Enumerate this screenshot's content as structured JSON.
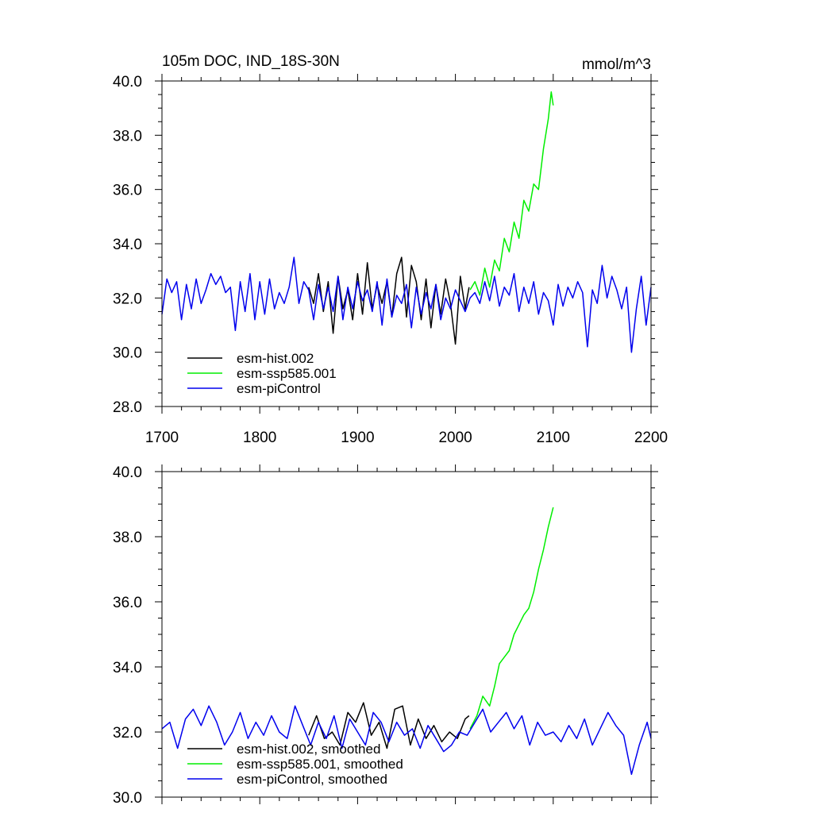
{
  "chart_data": [
    {
      "type": "line",
      "title": "105m DOC, IND_18S-30N",
      "units": "mmol/m^3",
      "xlabel": "",
      "ylabel": "",
      "xlim": [
        1700,
        2200
      ],
      "ylim": [
        28.0,
        40.0
      ],
      "xticks": [
        1700,
        1800,
        1900,
        2000,
        2100,
        2200
      ],
      "xtick_labels": [
        "1700",
        "1800",
        "1900",
        "2000",
        "2100",
        "2200"
      ],
      "yticks": [
        28.0,
        30.0,
        32.0,
        34.0,
        36.0,
        38.0,
        40.0
      ],
      "ytick_labels": [
        "28.0",
        "30.0",
        "32.0",
        "34.0",
        "36.0",
        "38.0",
        "40.0"
      ],
      "legend": "bottom-left",
      "series": [
        {
          "name": "esm-hist.002",
          "color": "#000000",
          "x": [
            1850,
            1855,
            1860,
            1865,
            1870,
            1875,
            1880,
            1885,
            1890,
            1895,
            1900,
            1905,
            1910,
            1915,
            1920,
            1925,
            1930,
            1935,
            1940,
            1945,
            1950,
            1955,
            1960,
            1965,
            1970,
            1975,
            1980,
            1985,
            1990,
            1995,
            2000,
            2005,
            2010,
            2014
          ],
          "y": [
            32.4,
            31.8,
            32.9,
            31.5,
            32.6,
            30.7,
            32.8,
            31.6,
            32.3,
            31.2,
            32.9,
            31.4,
            33.3,
            31.6,
            32.5,
            31.8,
            32.6,
            31.3,
            32.9,
            33.5,
            31.3,
            33.2,
            32.6,
            31.2,
            32.7,
            30.9,
            32.5,
            31.4,
            32.7,
            31.8,
            30.3,
            32.8,
            31.6,
            32.4
          ]
        },
        {
          "name": "esm-ssp585.001",
          "color": "#00ee00",
          "x": [
            2015,
            2020,
            2025,
            2030,
            2035,
            2040,
            2045,
            2050,
            2055,
            2060,
            2065,
            2070,
            2075,
            2080,
            2085,
            2090,
            2095,
            2098,
            2100
          ],
          "y": [
            32.3,
            32.6,
            32.1,
            33.1,
            32.4,
            33.4,
            33.0,
            34.2,
            33.7,
            34.8,
            34.2,
            35.6,
            35.2,
            36.2,
            36.0,
            37.5,
            38.6,
            39.6,
            39.1
          ]
        },
        {
          "name": "esm-piControl",
          "color": "#0000ee",
          "x": [
            1700,
            1705,
            1710,
            1715,
            1720,
            1725,
            1730,
            1735,
            1740,
            1745,
            1750,
            1755,
            1760,
            1765,
            1770,
            1775,
            1780,
            1785,
            1790,
            1795,
            1800,
            1805,
            1810,
            1815,
            1820,
            1825,
            1830,
            1835,
            1840,
            1845,
            1850,
            1855,
            1860,
            1865,
            1870,
            1875,
            1880,
            1885,
            1890,
            1895,
            1900,
            1905,
            1910,
            1915,
            1920,
            1925,
            1930,
            1935,
            1940,
            1945,
            1950,
            1955,
            1960,
            1965,
            1970,
            1975,
            1980,
            1985,
            1990,
            1995,
            2000,
            2005,
            2010,
            2015,
            2020,
            2025,
            2030,
            2035,
            2040,
            2045,
            2050,
            2055,
            2060,
            2065,
            2070,
            2075,
            2080,
            2085,
            2090,
            2095,
            2100,
            2105,
            2110,
            2115,
            2120,
            2125,
            2130,
            2135,
            2140,
            2145,
            2150,
            2155,
            2160,
            2165,
            2170,
            2175,
            2180,
            2185,
            2190,
            2195,
            2200
          ],
          "y": [
            31.4,
            32.7,
            32.2,
            32.6,
            31.2,
            32.5,
            31.6,
            32.7,
            31.8,
            32.3,
            32.9,
            32.5,
            32.8,
            32.2,
            32.4,
            30.8,
            32.6,
            31.5,
            32.9,
            31.2,
            32.6,
            31.4,
            32.7,
            31.6,
            32.2,
            31.8,
            32.4,
            33.5,
            31.8,
            32.6,
            32.3,
            31.2,
            32.5,
            31.6,
            32.4,
            31.5,
            32.8,
            31.2,
            32.4,
            31.6,
            32.6,
            31.9,
            32.3,
            31.5,
            32.6,
            31.0,
            32.7,
            31.3,
            32.1,
            31.8,
            32.5,
            30.9,
            32.4,
            31.4,
            32.2,
            31.6,
            32.5,
            31.2,
            32.0,
            31.6,
            32.3,
            31.9,
            31.5,
            32.0,
            32.2,
            31.8,
            32.6,
            31.9,
            32.8,
            31.7,
            32.4,
            32.1,
            32.9,
            31.5,
            32.4,
            31.8,
            32.6,
            31.4,
            32.2,
            31.9,
            31.0,
            32.5,
            31.7,
            32.4,
            32.0,
            32.6,
            32.2,
            30.2,
            32.3,
            31.8,
            33.2,
            32.0,
            32.8,
            32.3,
            31.6,
            32.4,
            30.0,
            31.6,
            32.8,
            31.0,
            32.4
          ]
        }
      ]
    },
    {
      "type": "line",
      "title": "",
      "xlim": [
        1700,
        2200
      ],
      "ylim": [
        30.0,
        40.0
      ],
      "yticks": [
        30.0,
        32.0,
        34.0,
        36.0,
        38.0,
        40.0
      ],
      "ytick_labels": [
        "30.0",
        "32.0",
        "34.0",
        "36.0",
        "38.0",
        "40.0"
      ],
      "legend": "bottom-left",
      "series": [
        {
          "name": "esm-hist.002, smoothed",
          "color": "#000000",
          "x": [
            1850,
            1858,
            1866,
            1874,
            1882,
            1890,
            1898,
            1906,
            1914,
            1922,
            1930,
            1938,
            1946,
            1954,
            1962,
            1970,
            1978,
            1986,
            1994,
            2002,
            2010,
            2014
          ],
          "y": [
            31.9,
            32.5,
            31.8,
            32.0,
            31.6,
            32.6,
            32.3,
            32.9,
            31.9,
            32.3,
            31.5,
            32.7,
            32.8,
            31.6,
            32.4,
            31.8,
            32.2,
            31.7,
            32.0,
            31.8,
            32.4,
            32.5
          ]
        },
        {
          "name": "esm-ssp585.001, smoothed",
          "color": "#00ee00",
          "x": [
            2015,
            2022,
            2028,
            2035,
            2040,
            2045,
            2050,
            2055,
            2060,
            2065,
            2070,
            2075,
            2080,
            2085,
            2090,
            2095,
            2100
          ],
          "y": [
            32.1,
            32.5,
            33.1,
            32.8,
            33.4,
            34.1,
            34.3,
            34.5,
            35.0,
            35.3,
            35.6,
            35.8,
            36.3,
            37.0,
            37.6,
            38.3,
            38.9
          ]
        },
        {
          "name": "esm-piControl, smoothed",
          "color": "#0000ee",
          "x": [
            1700,
            1708,
            1716,
            1724,
            1732,
            1740,
            1748,
            1756,
            1764,
            1772,
            1780,
            1788,
            1796,
            1804,
            1812,
            1820,
            1828,
            1836,
            1844,
            1852,
            1860,
            1868,
            1876,
            1884,
            1892,
            1900,
            1908,
            1916,
            1924,
            1932,
            1940,
            1948,
            1956,
            1964,
            1972,
            1980,
            1988,
            1996,
            2004,
            2012,
            2020,
            2028,
            2036,
            2044,
            2052,
            2060,
            2068,
            2076,
            2084,
            2092,
            2100,
            2108,
            2116,
            2124,
            2132,
            2140,
            2148,
            2156,
            2164,
            2172,
            2180,
            2188,
            2196,
            2200
          ],
          "y": [
            32.1,
            32.3,
            31.5,
            32.4,
            32.7,
            32.2,
            32.8,
            32.3,
            31.6,
            32.0,
            32.6,
            31.8,
            32.3,
            31.9,
            32.5,
            32.0,
            31.8,
            32.8,
            32.2,
            31.6,
            32.3,
            31.8,
            32.5,
            31.5,
            32.4,
            32.0,
            31.6,
            32.6,
            32.3,
            31.7,
            32.3,
            31.9,
            32.1,
            31.5,
            32.2,
            31.8,
            31.4,
            31.6,
            32.0,
            31.9,
            32.3,
            32.7,
            32.0,
            32.3,
            32.6,
            32.1,
            32.5,
            31.6,
            32.3,
            31.9,
            32.0,
            31.7,
            32.2,
            31.8,
            32.4,
            31.6,
            32.1,
            32.6,
            32.2,
            31.9,
            30.7,
            31.6,
            32.3,
            31.8
          ]
        }
      ]
    }
  ]
}
